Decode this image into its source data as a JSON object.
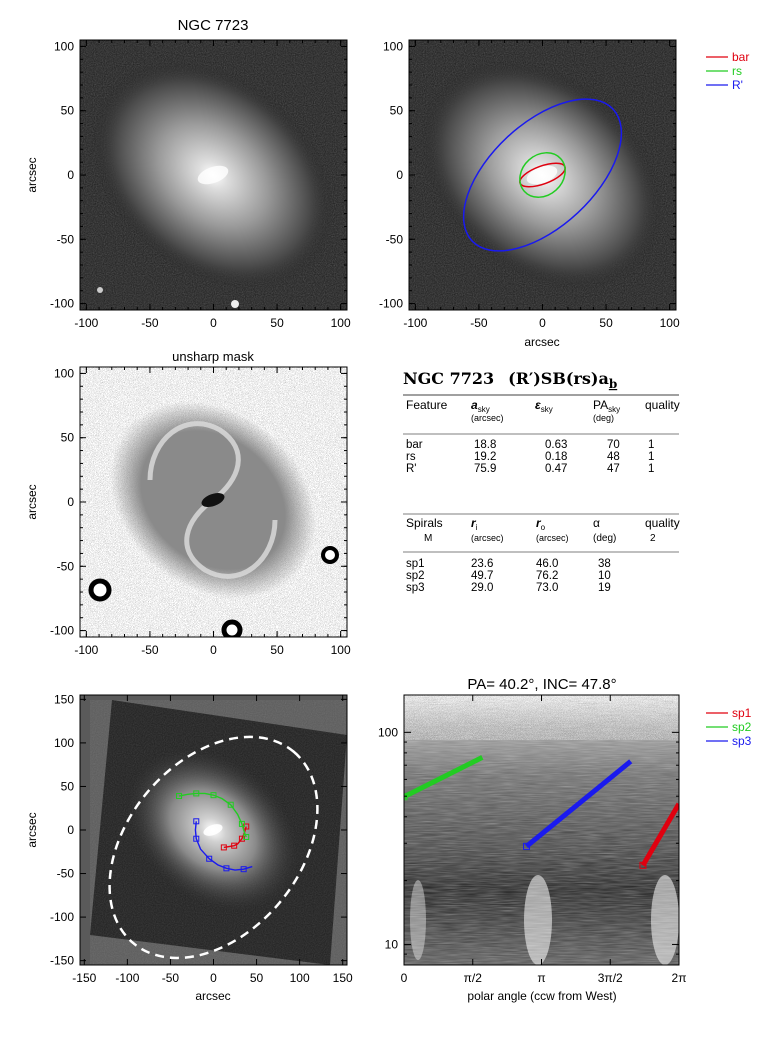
{
  "panel_titles": {
    "image": "NGC 7723",
    "unsharp": "unsharp mask",
    "pa_inc": "PA= 40.2°, INC= 47.8°"
  },
  "axis_labels": {
    "arcsec": "arcsec",
    "polar": "polar angle (ccw from West)"
  },
  "ticks": {
    "arcsec100_x": [
      "-100",
      "-50",
      "0",
      "50",
      "100"
    ],
    "arcsec100_y": [
      "100",
      "50",
      "0",
      "-50",
      "-100"
    ],
    "arcsec150_x": [
      "-150",
      "-100",
      "-50",
      "0",
      "50",
      "100",
      "150"
    ],
    "arcsec150_y": [
      "150",
      "100",
      "50",
      "0",
      "-50",
      "-100",
      "-150"
    ],
    "polar_x": [
      "0",
      "π/2",
      "π",
      "3π/2",
      "2π"
    ],
    "polar_y": [
      "100",
      "10"
    ]
  },
  "legend_rings": [
    {
      "label": "bar",
      "color": "#e0000f"
    },
    {
      "label": "rs",
      "color": "#22cc22"
    },
    {
      "label": "R'",
      "color": "#1a1aee"
    }
  ],
  "legend_spirals": [
    {
      "label": "sp1",
      "color": "#e0000f"
    },
    {
      "label": "sp2",
      "color": "#22cc22"
    },
    {
      "label": "sp3",
      "color": "#1a1aee"
    }
  ],
  "classification": {
    "galaxy": "NGC 7723",
    "type": "(R′)SB(rs)a",
    "subscript": "b"
  },
  "features_table": {
    "headers": [
      "Feature",
      "a",
      "ε",
      "PA",
      "quality"
    ],
    "header_subscripts": [
      "",
      "sky",
      "sky",
      "sky",
      ""
    ],
    "units": [
      "",
      "(arcsec)",
      "",
      "(deg)",
      ""
    ],
    "rows": [
      [
        "bar",
        "18.8",
        "0.63",
        "70",
        "1"
      ],
      [
        "rs",
        "19.2",
        "0.18",
        "48",
        "1"
      ],
      [
        "R'",
        "75.9",
        "0.47",
        "47",
        "1"
      ]
    ]
  },
  "spirals_table": {
    "headers": [
      "Spirals",
      "r",
      "r",
      "α",
      "quality"
    ],
    "header_subscripts": [
      "",
      "i",
      "o",
      "",
      ""
    ],
    "subheader": [
      "M",
      "(arcsec)",
      "(arcsec)",
      "(deg)",
      "2"
    ],
    "rows": [
      [
        "sp1",
        "23.6",
        "46.0",
        "38"
      ],
      [
        "sp2",
        "49.7",
        "76.2",
        "10"
      ],
      [
        "sp3",
        "29.0",
        "73.0",
        "19"
      ]
    ]
  },
  "chart_data": [
    {
      "type": "image",
      "title": "NGC 7723",
      "xlabel": "",
      "ylabel": "arcsec",
      "xlim": [
        -105,
        105
      ],
      "ylim": [
        -105,
        105
      ]
    },
    {
      "type": "image",
      "title": "",
      "xlabel": "arcsec",
      "ylabel": "",
      "xlim": [
        -105,
        105
      ],
      "ylim": [
        -105,
        105
      ],
      "ellipses": [
        {
          "name": "bar",
          "a": 18.8,
          "eps": 0.63,
          "pa": 70,
          "color": "#e0000f"
        },
        {
          "name": "rs",
          "a": 19.2,
          "eps": 0.18,
          "pa": 48,
          "color": "#22cc22"
        },
        {
          "name": "R'",
          "a": 75.9,
          "eps": 0.47,
          "pa": 47,
          "color": "#1a1aee"
        }
      ]
    },
    {
      "type": "image",
      "title": "unsharp mask",
      "xlabel": "",
      "ylabel": "arcsec",
      "xlim": [
        -105,
        105
      ],
      "ylim": [
        -105,
        105
      ]
    },
    {
      "type": "image",
      "title": "",
      "xlabel": "arcsec",
      "ylabel": "arcsec",
      "xlim": [
        -155,
        155
      ],
      "ylim": [
        -155,
        155
      ],
      "spirals": [
        {
          "name": "sp1",
          "color": "#e0000f",
          "points": [
            [
              12,
              -20
            ],
            [
              18,
              -19
            ],
            [
              24,
              -18
            ],
            [
              28,
              -16
            ],
            [
              33,
              -10
            ],
            [
              36,
              -3
            ],
            [
              38,
              4
            ]
          ]
        },
        {
          "name": "sp2",
          "color": "#22cc22",
          "points": [
            [
              -40,
              39
            ],
            [
              -30,
              41
            ],
            [
              -20,
              42
            ],
            [
              -10,
              42
            ],
            [
              0,
              40
            ],
            [
              10,
              36
            ],
            [
              20,
              29
            ],
            [
              28,
              18
            ],
            [
              33,
              7
            ],
            [
              36,
              -3
            ],
            [
              38,
              -8
            ]
          ]
        },
        {
          "name": "sp3",
          "color": "#1a1aee",
          "points": [
            [
              -20,
              10
            ],
            [
              -21,
              0
            ],
            [
              -20,
              -10
            ],
            [
              -15,
              -22
            ],
            [
              -5,
              -33
            ],
            [
              5,
              -40
            ],
            [
              15,
              -44
            ],
            [
              25,
              -46
            ],
            [
              35,
              -45
            ],
            [
              45,
              -42
            ]
          ]
        }
      ],
      "dashed_ellipse": {
        "center": [
          0,
          -20
        ],
        "a": 145,
        "b": 100,
        "pa": 50
      }
    },
    {
      "type": "line",
      "title": "PA= 40.2°, INC= 47.8°",
      "xlabel": "polar angle (ccw from West)",
      "ylabel": "",
      "xlim": [
        0,
        6.2832
      ],
      "ylim": [
        8,
        150
      ],
      "yscale": "log",
      "series": [
        {
          "name": "sp1",
          "color": "#e0000f",
          "x": [
            5.46,
            6.28
          ],
          "y": [
            23.6,
            46.0
          ]
        },
        {
          "name": "sp2",
          "color": "#22cc22",
          "x": [
            0.0,
            1.79
          ],
          "y": [
            49.7,
            76.2
          ]
        },
        {
          "name": "sp3",
          "color": "#1a1aee",
          "x": [
            2.8,
            5.18
          ],
          "y": [
            29.0,
            73.0
          ]
        }
      ]
    }
  ]
}
